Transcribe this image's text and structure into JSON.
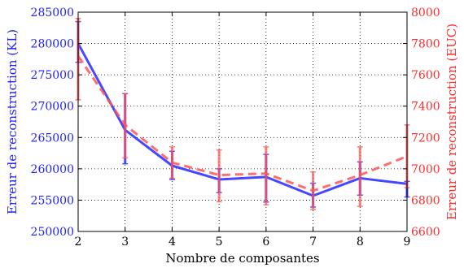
{
  "chart_data": {
    "type": "line",
    "xlabel": "Nombre de composantes",
    "ylabel_left": "Erreur de reconstruction (KL)",
    "ylabel_right": "Erreur de reconstruction (EUC)",
    "x": [
      2,
      3,
      4,
      5,
      6,
      7,
      8,
      9
    ],
    "xlim": [
      2,
      9
    ],
    "ylim_left": [
      250000,
      285000
    ],
    "ylim_right": [
      6600,
      8000
    ],
    "yticks_left": [
      250000,
      255000,
      260000,
      265000,
      270000,
      275000,
      280000,
      285000
    ],
    "yticks_right": [
      6600,
      6800,
      7000,
      7200,
      7400,
      7600,
      7800,
      8000
    ],
    "grid": true,
    "series": [
      {
        "axis": "left",
        "color": "#3333ff",
        "style": "solid",
        "values": [
          280000,
          266200,
          260500,
          258300,
          258700,
          255700,
          258500,
          257600
        ],
        "err_low": [
          277000,
          260800,
          258300,
          256200,
          254700,
          253900,
          255800,
          255500
        ],
        "err_high": [
          283500,
          272000,
          262800,
          260000,
          262300,
          257700,
          261100,
          258000
        ]
      },
      {
        "axis": "right",
        "color": "#ff5555",
        "style": "dashed",
        "values": [
          7720,
          7280,
          7040,
          6960,
          6970,
          6860,
          6960,
          7080
        ],
        "err_low": [
          7440,
          7070,
          6940,
          6790,
          6770,
          6740,
          6760,
          6880
        ],
        "err_high": [
          7960,
          7480,
          7140,
          7120,
          7140,
          6980,
          7140,
          7280
        ]
      }
    ]
  }
}
